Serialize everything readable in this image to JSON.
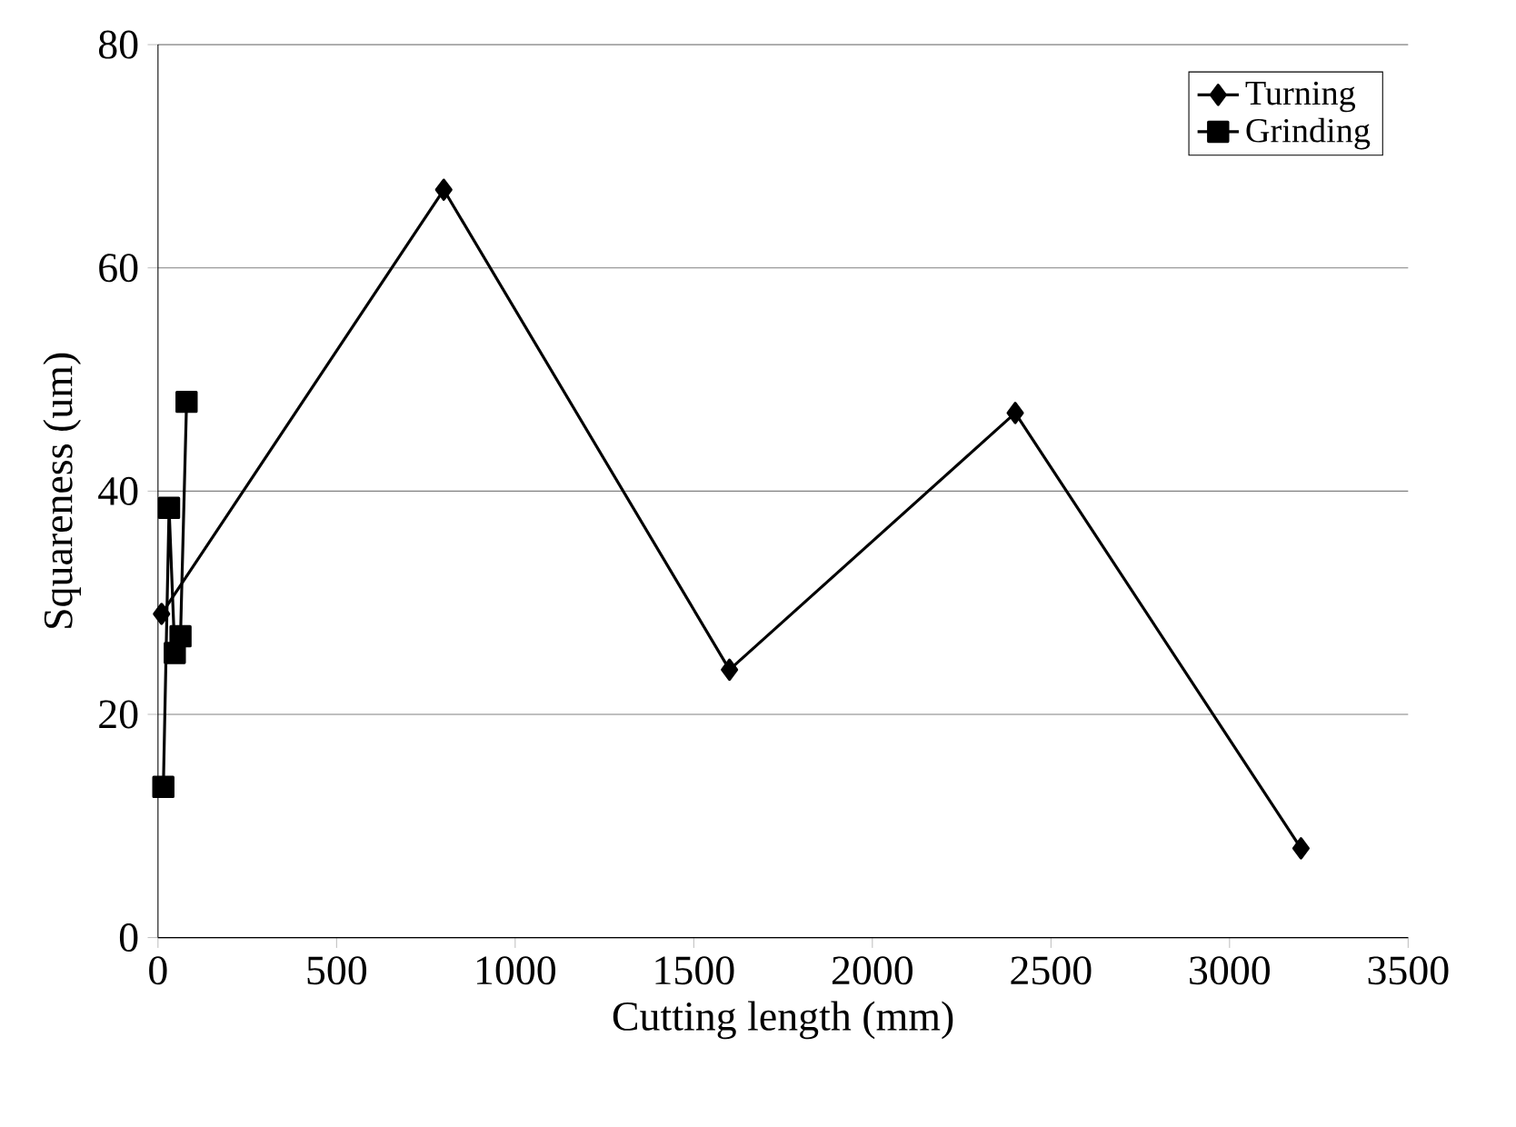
{
  "chart_data": {
    "type": "line",
    "xlabel": "Cutting length (mm)",
    "ylabel": "Squareness (um)",
    "xlim": [
      0,
      3500
    ],
    "xticks": [
      0,
      500,
      1000,
      1500,
      2000,
      2500,
      3000,
      3500
    ],
    "ylim": [
      0,
      80
    ],
    "yticks": [
      0,
      20,
      40,
      60,
      80
    ],
    "grid": "y",
    "legend": "top right",
    "line_style": "solid",
    "series": [
      {
        "name": "Turning",
        "color": "#000000",
        "marker": "diamond",
        "x": [
          10,
          800,
          1600,
          2400,
          3200
        ],
        "values": [
          29,
          67,
          24,
          47,
          8
        ]
      },
      {
        "name": "Grinding",
        "color": "#000000",
        "marker": "square",
        "x": [
          15,
          31,
          47,
          63,
          80
        ],
        "values": [
          13.5,
          38.5,
          25.5,
          27,
          48
        ]
      }
    ]
  }
}
